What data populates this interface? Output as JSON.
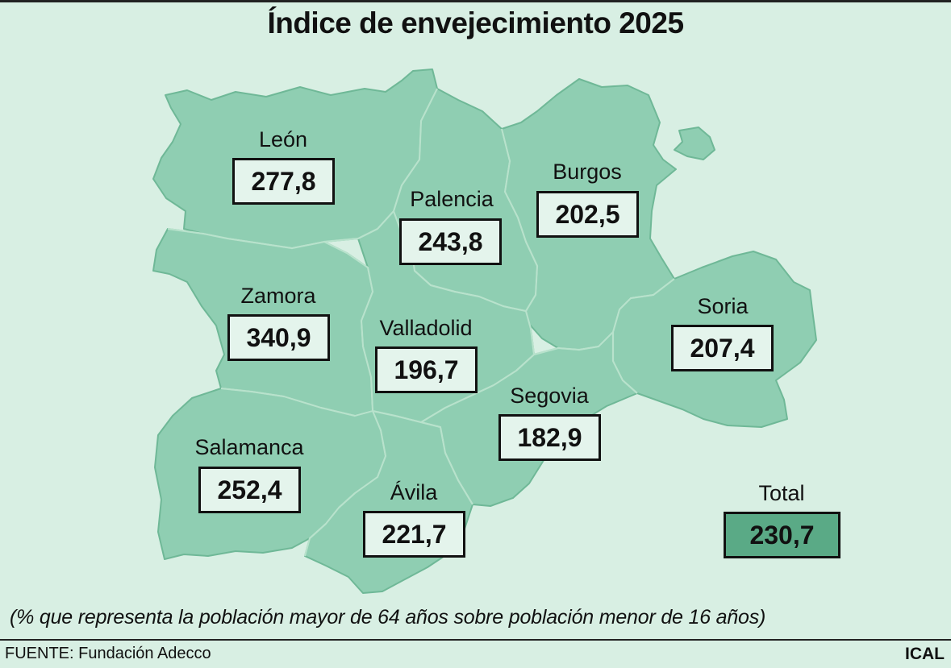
{
  "title": "Índice de envejecimiento 2025",
  "provinces": [
    {
      "id": "leon",
      "name": "León",
      "value": "277,8"
    },
    {
      "id": "palencia",
      "name": "Palencia",
      "value": "243,8"
    },
    {
      "id": "burgos",
      "name": "Burgos",
      "value": "202,5"
    },
    {
      "id": "zamora",
      "name": "Zamora",
      "value": "340,9"
    },
    {
      "id": "valladolid",
      "name": "Valladolid",
      "value": "196,7"
    },
    {
      "id": "soria",
      "name": "Soria",
      "value": "207,4"
    },
    {
      "id": "segovia",
      "name": "Segovia",
      "value": "182,9"
    },
    {
      "id": "salamanca",
      "name": "Salamanca",
      "value": "252,4"
    },
    {
      "id": "avila",
      "name": "Ávila",
      "value": "221,7"
    }
  ],
  "total": {
    "name": "Total",
    "value": "230,7"
  },
  "note": "(% que representa la población mayor de 64 años sobre población menor de 16 años)",
  "source": "FUENTE: Fundación Adecco",
  "brand": "ICAL",
  "colors": {
    "background": "#d8efe3",
    "region_fill": "#8fceb2",
    "value_box": "#e4f4ec",
    "total_box": "#5aaa86"
  }
}
